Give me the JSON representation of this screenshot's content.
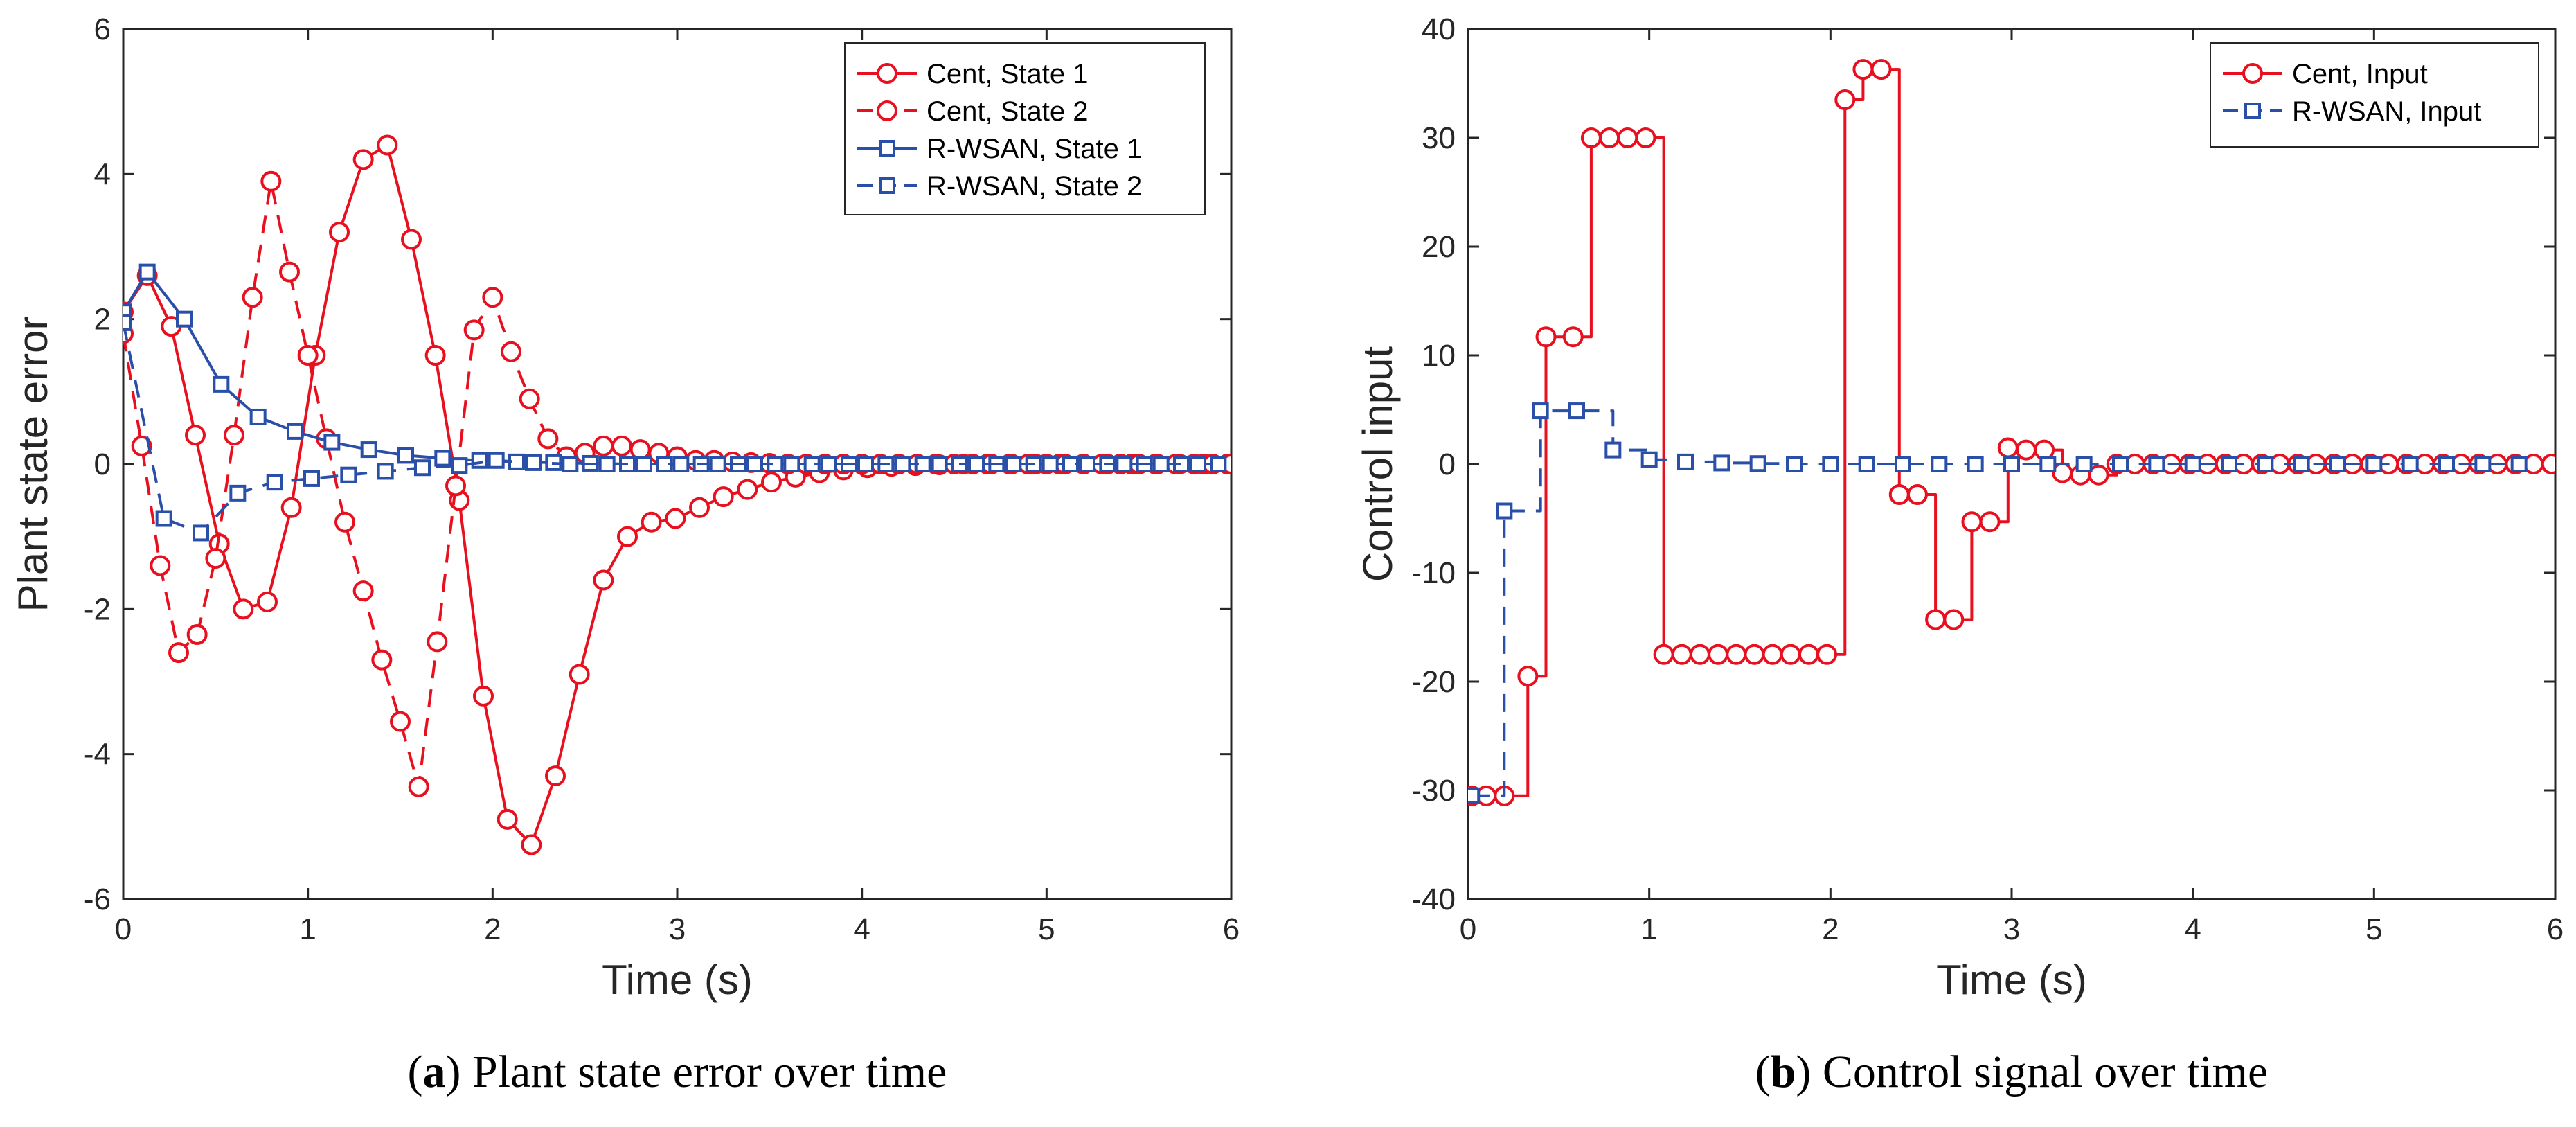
{
  "colors": {
    "red": "#e8101e",
    "blue": "#2a4fa8",
    "axis": "#262626"
  },
  "chart_data": [
    {
      "type": "line",
      "id": "a",
      "caption_letter": "a",
      "caption_text": " Plant state error over time",
      "xlabel": "Time (s)",
      "ylabel": "Plant state error",
      "xlim": [
        0,
        6
      ],
      "ylim": [
        -6,
        6
      ],
      "xticks": [
        "0",
        "1",
        "2",
        "3",
        "4",
        "5",
        "6"
      ],
      "yticks": [
        "-6",
        "-4",
        "-2",
        "0",
        "2",
        "4",
        "6"
      ],
      "legend_position": "top-right",
      "series": [
        {
          "name": "Cent, State 1",
          "color": "red",
          "style": "solid",
          "marker": "circle",
          "step": false,
          "x": [
            0,
            0.13,
            0.26,
            0.39,
            0.52,
            0.65,
            0.78,
            0.91,
            1.04,
            1.17,
            1.3,
            1.43,
            1.56,
            1.69,
            1.82,
            1.95,
            2.08,
            2.21,
            2.34,
            2.47,
            2.6,
            2.73,
            2.86,
            2.99,
            3.12,
            3.25,
            3.38,
            3.51,
            3.64,
            3.77,
            3.9,
            4.03,
            4.16,
            4.29,
            4.42,
            4.55,
            4.68,
            4.81,
            4.94,
            5.07,
            5.2,
            5.33,
            5.46,
            5.59,
            5.72,
            5.85,
            5.98
          ],
          "y": [
            2.1,
            2.6,
            1.9,
            0.4,
            -1.1,
            -2.0,
            -1.9,
            -0.6,
            1.5,
            3.2,
            4.2,
            4.4,
            3.1,
            1.5,
            -0.5,
            -3.2,
            -4.9,
            -5.25,
            -4.3,
            -2.9,
            -1.6,
            -1.0,
            -0.8,
            -0.75,
            -0.6,
            -0.45,
            -0.35,
            -0.25,
            -0.18,
            -0.12,
            -0.08,
            -0.05,
            -0.03,
            -0.02,
            -0.01,
            0,
            0,
            0,
            0,
            0,
            0,
            0,
            0,
            0,
            0,
            0,
            0
          ]
        },
        {
          "name": "Cent, State 2",
          "color": "red",
          "style": "dashed",
          "marker": "circle",
          "step": false,
          "x": [
            0,
            0.1,
            0.2,
            0.3,
            0.4,
            0.5,
            0.6,
            0.7,
            0.8,
            0.9,
            1.0,
            1.1,
            1.2,
            1.3,
            1.4,
            1.5,
            1.6,
            1.7,
            1.8,
            1.9,
            2.0,
            2.1,
            2.2,
            2.3,
            2.4,
            2.5,
            2.6,
            2.7,
            2.8,
            2.9,
            3.0,
            3.1,
            3.2,
            3.3,
            3.4,
            3.5,
            3.6,
            3.7,
            3.8,
            3.9,
            4.0,
            4.1,
            4.2,
            4.3,
            4.4,
            4.5,
            4.6,
            4.7,
            4.8,
            4.9,
            5.0,
            5.1,
            5.2,
            5.3,
            5.4,
            5.5,
            5.6,
            5.7,
            5.8,
            5.9,
            6.0
          ],
          "y": [
            1.8,
            0.25,
            -1.4,
            -2.6,
            -2.35,
            -1.3,
            0.4,
            2.3,
            3.9,
            2.65,
            1.5,
            0.35,
            -0.8,
            -1.75,
            -2.7,
            -3.55,
            -4.45,
            -2.45,
            -0.3,
            1.85,
            2.3,
            1.55,
            0.9,
            0.35,
            0.1,
            0.15,
            0.25,
            0.25,
            0.2,
            0.15,
            0.1,
            0.05,
            0.05,
            0.03,
            0.02,
            0.01,
            0,
            0,
            0,
            0,
            0,
            0,
            0,
            0,
            0,
            0,
            0,
            0,
            0,
            0,
            0,
            0,
            0,
            0,
            0,
            0,
            0,
            0,
            0,
            0,
            0
          ]
        },
        {
          "name": "R-WSAN, State 1",
          "color": "blue",
          "style": "solid",
          "marker": "square",
          "step": false,
          "x": [
            0,
            0.13,
            0.33,
            0.53,
            0.73,
            0.93,
            1.13,
            1.33,
            1.53,
            1.73,
            1.93,
            2.13,
            2.33,
            2.53,
            2.73,
            2.93,
            3.13,
            3.33,
            3.53,
            3.73,
            3.93,
            4.13,
            4.33,
            4.53,
            4.73,
            4.93,
            5.13,
            5.33,
            5.53,
            5.73,
            5.93
          ],
          "y": [
            2.1,
            2.65,
            2.0,
            1.1,
            0.65,
            0.45,
            0.3,
            0.2,
            0.12,
            0.08,
            0.05,
            0.03,
            0.02,
            0.01,
            0,
            0,
            0,
            0,
            0,
            0,
            0,
            0,
            0,
            0,
            0,
            0,
            0,
            0,
            0,
            0,
            0
          ]
        },
        {
          "name": "R-WSAN, State 2",
          "color": "blue",
          "style": "dashed",
          "marker": "square",
          "step": false,
          "x": [
            0,
            0.22,
            0.42,
            0.62,
            0.82,
            1.02,
            1.22,
            1.42,
            1.62,
            1.82,
            2.02,
            2.22,
            2.42,
            2.62,
            2.82,
            3.02,
            3.22,
            3.42,
            3.62,
            3.82,
            4.02,
            4.22,
            4.42,
            4.62,
            4.82,
            5.02,
            5.22,
            5.42,
            5.62,
            5.82
          ],
          "y": [
            1.95,
            -0.75,
            -0.95,
            -0.4,
            -0.25,
            -0.2,
            -0.15,
            -0.1,
            -0.05,
            -0.02,
            0.05,
            0.02,
            0,
            0,
            0,
            0,
            0,
            0,
            0,
            0,
            0,
            0,
            0,
            0,
            0,
            0,
            0,
            0,
            0,
            0
          ]
        }
      ]
    },
    {
      "type": "line",
      "id": "b",
      "caption_letter": "b",
      "caption_text": " Control signal over time",
      "xlabel": "Time (s)",
      "ylabel": "Control input",
      "xlim": [
        0,
        6
      ],
      "ylim": [
        -40,
        40
      ],
      "xticks": [
        "0",
        "1",
        "2",
        "3",
        "4",
        "5",
        "6"
      ],
      "yticks": [
        "-40",
        "-30",
        "-20",
        "-10",
        "0",
        "10",
        "20",
        "30",
        "40"
      ],
      "legend_position": "top-right",
      "series": [
        {
          "name": "Cent, Input",
          "color": "red",
          "style": "solid",
          "marker": "circle",
          "step": true,
          "x": [
            0.02,
            0.1,
            0.2,
            0.33,
            0.43,
            0.58,
            0.68,
            0.78,
            0.88,
            0.98,
            1.08,
            1.18,
            1.28,
            1.38,
            1.48,
            1.58,
            1.68,
            1.78,
            1.88,
            1.98,
            2.08,
            2.18,
            2.28,
            2.38,
            2.48,
            2.58,
            2.68,
            2.78,
            2.88,
            2.98,
            3.08,
            3.18,
            3.28,
            3.38,
            3.48,
            3.58,
            3.68,
            3.78,
            3.88,
            3.98,
            4.08,
            4.18,
            4.28,
            4.38,
            4.48,
            4.58,
            4.68,
            4.78,
            4.88,
            4.98,
            5.08,
            5.18,
            5.28,
            5.38,
            5.48,
            5.58,
            5.68,
            5.78,
            5.88,
            5.98
          ],
          "y": [
            -30.5,
            -30.5,
            -30.5,
            -19.5,
            11.7,
            11.7,
            30,
            30,
            30,
            30,
            -17.5,
            -17.5,
            -17.5,
            -17.5,
            -17.5,
            -17.5,
            -17.5,
            -17.5,
            -17.5,
            -17.5,
            33.5,
            36.3,
            36.3,
            -2.8,
            -2.8,
            -14.3,
            -14.3,
            -5.3,
            -5.3,
            1.5,
            1.3,
            1.3,
            -0.8,
            -1.0,
            -1.0,
            0,
            0,
            0,
            0,
            0,
            0,
            0,
            0,
            0,
            0,
            0,
            0,
            0,
            0,
            0,
            0,
            0,
            0,
            0,
            0,
            0,
            0,
            0,
            0,
            0
          ]
        },
        {
          "name": "R-WSAN, Input",
          "color": "blue",
          "style": "dashed",
          "marker": "square",
          "step": true,
          "x": [
            0.02,
            0.2,
            0.4,
            0.6,
            0.8,
            1.0,
            1.2,
            1.4,
            1.6,
            1.8,
            2.0,
            2.2,
            2.4,
            2.6,
            2.8,
            3.0,
            3.2,
            3.4,
            3.6,
            3.8,
            4.0,
            4.2,
            4.4,
            4.6,
            4.8,
            5.0,
            5.2,
            5.4,
            5.6,
            5.8
          ],
          "y": [
            -30.5,
            -4.3,
            4.9,
            4.9,
            1.3,
            0.4,
            0.2,
            0.1,
            0.05,
            0,
            0,
            0,
            0,
            0,
            0,
            0,
            0,
            0,
            0,
            0,
            0,
            0,
            0,
            0,
            0,
            0,
            0,
            0,
            0,
            0
          ]
        }
      ]
    }
  ]
}
